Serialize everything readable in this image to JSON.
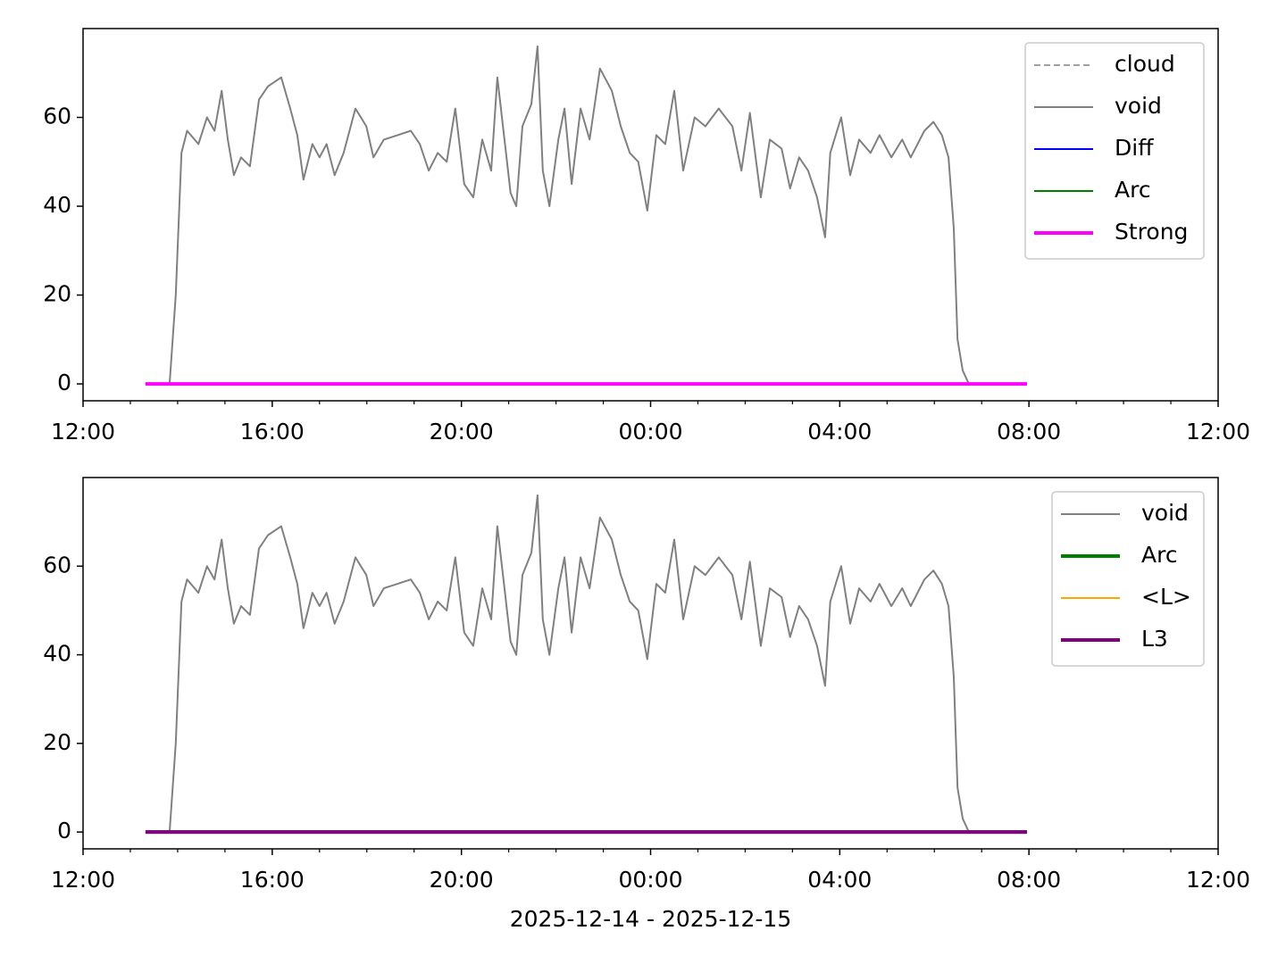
{
  "chart_data": [
    {
      "type": "line",
      "xlim": [
        0,
        24
      ],
      "ylim": [
        -3.8,
        80
      ],
      "xticks": [
        {
          "value": 0,
          "label": "12:00"
        },
        {
          "value": 4,
          "label": "16:00"
        },
        {
          "value": 8,
          "label": "20:00"
        },
        {
          "value": 12,
          "label": "00:00"
        },
        {
          "value": 16,
          "label": "04:00"
        },
        {
          "value": 20,
          "label": "08:00"
        },
        {
          "value": 24,
          "label": "12:00"
        }
      ],
      "xminorticks": [
        1,
        2,
        3,
        5,
        6,
        7,
        9,
        10,
        11,
        13,
        14,
        15,
        17,
        18,
        19,
        21,
        22,
        23
      ],
      "yticks": [
        0,
        20,
        40,
        60
      ],
      "legend": "upper right",
      "series": [
        {
          "name": "cloud",
          "color": "#808080",
          "linestyle": "dashed",
          "linewidth": 1.5,
          "x": [
            1.32,
            19.96
          ],
          "values": [
            0,
            0
          ]
        },
        {
          "name": "void",
          "color": "#808080",
          "linestyle": "solid",
          "linewidth": 2,
          "x": [
            1.83,
            1.96,
            2.08,
            2.2,
            2.44,
            2.62,
            2.78,
            2.93,
            3.06,
            3.19,
            3.34,
            3.53,
            3.72,
            3.91,
            4.19,
            4.38,
            4.53,
            4.66,
            4.85,
            5.0,
            5.15,
            5.32,
            5.51,
            5.76,
            5.99,
            6.14,
            6.36,
            6.65,
            6.93,
            7.12,
            7.31,
            7.5,
            7.69,
            7.87,
            8.06,
            8.25,
            8.44,
            8.63,
            8.76,
            8.91,
            9.04,
            9.16,
            9.29,
            9.48,
            9.61,
            9.72,
            9.86,
            10.05,
            10.18,
            10.33,
            10.52,
            10.71,
            10.93,
            11.18,
            11.37,
            11.56,
            11.74,
            11.93,
            12.12,
            12.31,
            12.5,
            12.69,
            12.93,
            13.16,
            13.44,
            13.73,
            13.92,
            14.1,
            14.33,
            14.52,
            14.77,
            14.95,
            15.14,
            15.33,
            15.52,
            15.69,
            15.8,
            16.03,
            16.22,
            16.41,
            16.65,
            16.84,
            17.09,
            17.32,
            17.5,
            17.79,
            17.98,
            18.16,
            18.3,
            18.41,
            18.49,
            18.6,
            18.73
          ],
          "values": [
            0,
            20,
            52,
            57,
            54,
            60,
            57,
            66,
            55,
            47,
            51,
            49,
            64,
            67,
            69,
            62,
            56,
            46,
            54,
            51,
            54,
            47,
            52,
            62,
            58,
            51,
            55,
            56,
            57,
            54,
            48,
            52,
            50,
            62,
            45,
            42,
            55,
            48,
            69,
            55,
            43,
            40,
            58,
            63,
            76,
            48,
            40,
            55,
            62,
            45,
            62,
            55,
            71,
            66,
            58,
            52,
            50,
            39,
            56,
            54,
            66,
            48,
            60,
            58,
            62,
            58,
            48,
            61,
            42,
            55,
            53,
            44,
            51,
            48,
            42,
            33,
            52,
            60,
            47,
            55,
            52,
            56,
            51,
            55,
            51,
            57,
            59,
            56,
            51,
            35,
            10,
            3,
            0
          ]
        },
        {
          "name": "Diff",
          "color": "#0000ff",
          "linestyle": "solid",
          "linewidth": 2,
          "x": [
            1.32,
            19.96
          ],
          "values": [
            0,
            0
          ]
        },
        {
          "name": "Arc",
          "color": "#008000",
          "linestyle": "solid",
          "linewidth": 2,
          "x": [
            1.32,
            19.96
          ],
          "values": [
            0,
            0
          ]
        },
        {
          "name": "Strong",
          "color": "#ff00ff",
          "linestyle": "solid",
          "linewidth": 4,
          "x": [
            1.32,
            19.96
          ],
          "values": [
            0,
            0
          ]
        }
      ]
    },
    {
      "type": "line",
      "xlim": [
        0,
        24
      ],
      "ylim": [
        -3.8,
        80
      ],
      "xticks": [
        {
          "value": 0,
          "label": "12:00"
        },
        {
          "value": 4,
          "label": "16:00"
        },
        {
          "value": 8,
          "label": "20:00"
        },
        {
          "value": 12,
          "label": "00:00"
        },
        {
          "value": 16,
          "label": "04:00"
        },
        {
          "value": 20,
          "label": "08:00"
        },
        {
          "value": 24,
          "label": "12:00"
        }
      ],
      "xminorticks": [
        1,
        2,
        3,
        5,
        6,
        7,
        9,
        10,
        11,
        13,
        14,
        15,
        17,
        18,
        19,
        21,
        22,
        23
      ],
      "yticks": [
        0,
        20,
        40,
        60
      ],
      "xlabel": "2025-12-14 - 2025-12-15",
      "legend": "upper right",
      "series": [
        {
          "name": "void",
          "color": "#808080",
          "linestyle": "solid",
          "linewidth": 2,
          "x": [
            1.83,
            1.96,
            2.08,
            2.2,
            2.44,
            2.62,
            2.78,
            2.93,
            3.06,
            3.19,
            3.34,
            3.53,
            3.72,
            3.91,
            4.19,
            4.38,
            4.53,
            4.66,
            4.85,
            5.0,
            5.15,
            5.32,
            5.51,
            5.76,
            5.99,
            6.14,
            6.36,
            6.65,
            6.93,
            7.12,
            7.31,
            7.5,
            7.69,
            7.87,
            8.06,
            8.25,
            8.44,
            8.63,
            8.76,
            8.91,
            9.04,
            9.16,
            9.29,
            9.48,
            9.61,
            9.72,
            9.86,
            10.05,
            10.18,
            10.33,
            10.52,
            10.71,
            10.93,
            11.18,
            11.37,
            11.56,
            11.74,
            11.93,
            12.12,
            12.31,
            12.5,
            12.69,
            12.93,
            13.16,
            13.44,
            13.73,
            13.92,
            14.1,
            14.33,
            14.52,
            14.77,
            14.95,
            15.14,
            15.33,
            15.52,
            15.69,
            15.8,
            16.03,
            16.22,
            16.41,
            16.65,
            16.84,
            17.09,
            17.32,
            17.5,
            17.79,
            17.98,
            18.16,
            18.3,
            18.41,
            18.49,
            18.6,
            18.73
          ],
          "values": [
            0,
            20,
            52,
            57,
            54,
            60,
            57,
            66,
            55,
            47,
            51,
            49,
            64,
            67,
            69,
            62,
            56,
            46,
            54,
            51,
            54,
            47,
            52,
            62,
            58,
            51,
            55,
            56,
            57,
            54,
            48,
            52,
            50,
            62,
            45,
            42,
            55,
            48,
            69,
            55,
            43,
            40,
            58,
            63,
            76,
            48,
            40,
            55,
            62,
            45,
            62,
            55,
            71,
            66,
            58,
            52,
            50,
            39,
            56,
            54,
            66,
            48,
            60,
            58,
            62,
            58,
            48,
            61,
            42,
            55,
            53,
            44,
            51,
            48,
            42,
            33,
            52,
            60,
            47,
            55,
            52,
            56,
            51,
            55,
            51,
            57,
            59,
            56,
            51,
            35,
            10,
            3,
            0
          ]
        },
        {
          "name": "Arc",
          "color": "#008000",
          "linestyle": "solid",
          "linewidth": 4,
          "x": [
            1.32,
            19.96
          ],
          "values": [
            0,
            0
          ]
        },
        {
          "name": "<L>",
          "color": "#ffa500",
          "linestyle": "solid",
          "linewidth": 2,
          "x": [
            1.32,
            19.96
          ],
          "values": [
            0,
            0
          ]
        },
        {
          "name": "L3",
          "color": "#800080",
          "linestyle": "solid",
          "linewidth": 4,
          "x": [
            1.32,
            19.96
          ],
          "values": [
            0,
            0
          ]
        }
      ]
    }
  ]
}
